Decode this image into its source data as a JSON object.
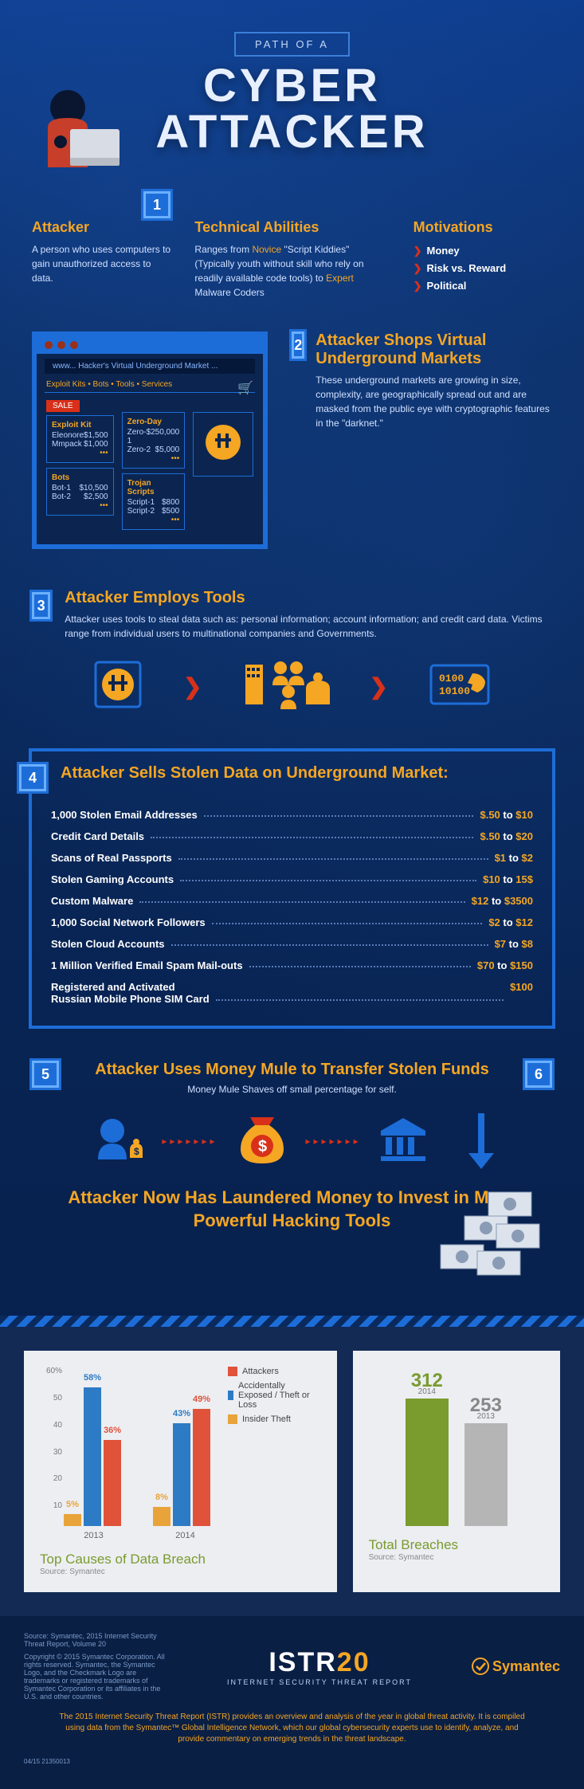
{
  "header": {
    "subtitle": "PATH OF A",
    "title_line1": "CYBER",
    "title_line2": "ATTACKER"
  },
  "step1": {
    "num": "1",
    "attacker_title": "Attacker",
    "attacker_body": "A person who uses computers to gain unauthorized access to data.",
    "tech_title": "Technical Abilities",
    "tech_prefix": "Ranges from ",
    "tech_novice": "Novice",
    "tech_mid": " \"Script Kiddies\" (Typically youth without skill who rely on readily available code tools) to ",
    "tech_expert": "Expert",
    "tech_suffix": " Malware Coders",
    "motiv_title": "Motivations",
    "motivations": [
      "Money",
      "Risk vs. Reward",
      "Political"
    ]
  },
  "step2": {
    "num": "2",
    "title": "Attacker Shops Virtual Underground Markets",
    "body": "These underground markets are growing in size, complexity, are geographically spread out and are masked from the public eye with cryptographic features in the \"darknet.\"",
    "url": "www... Hacker's Virtual Underground Market ...",
    "tabs": "Exploit Kits  •  Bots  •  Tools  •  Services",
    "sale": "SALE",
    "exploit_title": "Exploit Kit",
    "exploit_rows": [
      [
        "Eleonore",
        "$1,500"
      ],
      [
        "Mmpack",
        "$1,000"
      ]
    ],
    "zero_title": "Zero-Day",
    "zero_rows": [
      [
        "Zero-1",
        "$250,000"
      ],
      [
        "Zero-2",
        "$5,000"
      ]
    ],
    "bots_title": "Bots",
    "bots_rows": [
      [
        "Bot-1",
        "$10,500"
      ],
      [
        "Bot-2",
        "$2,500"
      ]
    ],
    "trojan_title": "Trojan Scripts",
    "trojan_rows": [
      [
        "Script-1",
        "$800"
      ],
      [
        "Script-2",
        "$500"
      ]
    ]
  },
  "step3": {
    "num": "3",
    "title": "Attacker Employs Tools",
    "body": "Attacker uses tools to steal data such as: personal information; account information; and credit card data. Victims range from individual users to multinational companies and Governments."
  },
  "step4": {
    "num": "4",
    "title": "Attacker Sells Stolen Data on Underground Market:",
    "prices": [
      {
        "label": "1,000 Stolen Email Addresses",
        "value": "$.50 to $10"
      },
      {
        "label": "Credit Card Details",
        "value": "$.50 to $20"
      },
      {
        "label": "Scans of Real Passports",
        "value": "$1 to $2"
      },
      {
        "label": "Stolen Gaming Accounts",
        "value": "$10 to 15$"
      },
      {
        "label": "Custom Malware",
        "value": "$12 to $3500"
      },
      {
        "label": "1,000 Social Network Followers",
        "value": "$2 to $12"
      },
      {
        "label": "Stolen Cloud Accounts",
        "value": "$7 to $8"
      },
      {
        "label": "1 Million Verified Email Spam Mail-outs",
        "value": "$70 to $150"
      },
      {
        "label": "Registered and Activated\nRussian Mobile Phone SIM Card",
        "value": "$100"
      }
    ]
  },
  "step5": {
    "num": "5",
    "title": "Attacker Uses Money Mule to Transfer Stolen Funds",
    "sub": "Money Mule Shaves off small percentage for self."
  },
  "step6": {
    "num": "6",
    "title": "Attacker Now Has Laundered Money to Invest in More Powerful Hacking Tools"
  },
  "chart_causes": {
    "type": "bar",
    "title": "Top Causes of Data Breach",
    "source": "Source: Symantec",
    "y_ticks": [
      "60%",
      "50",
      "40",
      "30",
      "20",
      "10"
    ],
    "legend": [
      {
        "label": "Attackers",
        "color": "#e0523a"
      },
      {
        "label": "Accidentally Exposed / Theft or Loss",
        "color": "#2d7bc4"
      },
      {
        "label": "Insider Theft",
        "color": "#e8a43a"
      }
    ],
    "groups": [
      {
        "year": "2013",
        "bars": [
          {
            "value": 5,
            "label": "5%",
            "color": "#e8a43a"
          },
          {
            "value": 58,
            "label": "58%",
            "color": "#2d7bc4"
          },
          {
            "value": 36,
            "label": "36%",
            "color": "#e0523a"
          }
        ]
      },
      {
        "year": "2014",
        "bars": [
          {
            "value": 8,
            "label": "8%",
            "color": "#e8a43a"
          },
          {
            "value": 43,
            "label": "43%",
            "color": "#2d7bc4"
          },
          {
            "value": 49,
            "label": "49%",
            "color": "#e0523a"
          }
        ]
      }
    ],
    "ylim_max": 60
  },
  "chart_breaches": {
    "title": "Total Breaches",
    "source": "Source: Symantec",
    "bars": [
      {
        "value": 312,
        "year": "2014",
        "color": "#7a9b2e",
        "height_pct": 100,
        "val_color": "#7a9b2e"
      },
      {
        "value": 253,
        "year": "2013",
        "color": "#b5b5b5",
        "height_pct": 81,
        "val_color": "#888"
      }
    ]
  },
  "footer": {
    "source": "Source: Symantec, 2015 Internet Security Threat Report, Volume 20",
    "copyright": "Copyright © 2015 Symantec Corporation. All rights reserved. Symantec, the Symantec Logo, and the Checkmark Logo are trademarks or registered trademarks of Symantec Corporation or its affiliates in the U.S. and other countries.",
    "istr": "ISTR",
    "istr_num": "20",
    "istr_sub": "INTERNET SECURITY THREAT REPORT",
    "symantec": "Symantec",
    "desc": "The 2015 Internet Security Threat Report (ISTR) provides an overview and analysis of the year in global threat activity. It is compiled using data from the Symantec™ Global Intelligence Network, which our global cybersecurity experts use to identify, analyze, and provide commentary on emerging trends in the threat landscape.",
    "stamp": "04/15  21350013"
  },
  "colors": {
    "orange": "#f5a623",
    "red": "#d9301a",
    "blue": "#1d6dd8",
    "lightblue": "#6ab0ff"
  }
}
